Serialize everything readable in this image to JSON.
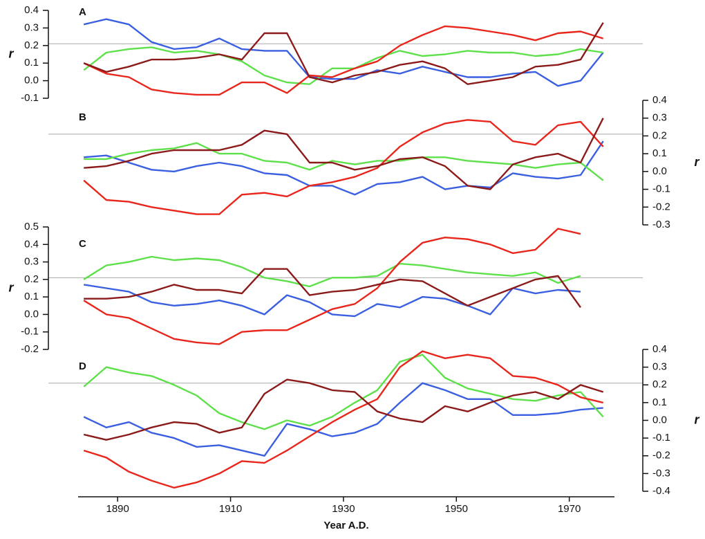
{
  "chart_data": [
    {
      "type": "line",
      "label": "A",
      "ylabel": "r",
      "y_axis_side": "left",
      "hline": 0.21,
      "hline_color": "#aaaaaa",
      "x": [
        1884,
        1888,
        1892,
        1896,
        1900,
        1904,
        1908,
        1912,
        1916,
        1920,
        1924,
        1928,
        1932,
        1936,
        1940,
        1944,
        1948,
        1952,
        1956,
        1960,
        1964,
        1968,
        1972,
        1976
      ],
      "xlim": [
        1883,
        1978
      ],
      "ylim": [
        -0.1,
        0.4
      ],
      "yticks": [
        -0.1,
        {
          "value": 0,
          "label": "0.0"
        },
        0.1,
        0.2,
        0.3,
        0.4
      ],
      "series": [
        {
          "color": "#3a5fe0",
          "values": [
            0.32,
            0.35,
            0.32,
            0.22,
            0.18,
            0.19,
            0.24,
            0.18,
            0.17,
            0.17,
            0.02,
            0.01,
            0.01,
            0.06,
            0.04,
            0.08,
            0.05,
            0.02,
            0.02,
            0.04,
            0.05,
            -0.03,
            0.0,
            0.16
          ]
        },
        {
          "color": "#5ee04a",
          "values": [
            0.06,
            0.16,
            0.18,
            0.19,
            0.16,
            0.17,
            0.15,
            0.11,
            0.03,
            -0.01,
            -0.02,
            0.07,
            0.07,
            0.13,
            0.17,
            0.14,
            0.15,
            0.17,
            0.16,
            0.16,
            0.14,
            0.15,
            0.18,
            0.16
          ]
        },
        {
          "color": "#e8261c",
          "values": [
            0.1,
            0.04,
            0.02,
            -0.05,
            -0.07,
            -0.08,
            -0.08,
            -0.01,
            -0.01,
            -0.07,
            0.03,
            0.02,
            0.07,
            0.11,
            0.2,
            0.26,
            0.31,
            0.3,
            0.28,
            0.26,
            0.23,
            0.27,
            0.28,
            0.24
          ]
        },
        {
          "color": "#8b1a1a",
          "values": [
            0.1,
            0.05,
            0.08,
            0.12,
            0.12,
            0.13,
            0.15,
            0.12,
            0.27,
            0.27,
            0.02,
            -0.01,
            0.03,
            0.05,
            0.09,
            0.11,
            0.07,
            -0.02,
            0.0,
            0.02,
            0.08,
            0.09,
            0.12,
            0.33
          ]
        }
      ]
    },
    {
      "type": "line",
      "label": "B",
      "ylabel": "r",
      "y_axis_side": "right",
      "hline": 0.21,
      "hline_color": "#aaaaaa",
      "x": [
        1884,
        1888,
        1892,
        1896,
        1900,
        1904,
        1908,
        1912,
        1916,
        1920,
        1924,
        1928,
        1932,
        1936,
        1940,
        1944,
        1948,
        1952,
        1956,
        1960,
        1964,
        1968,
        1972,
        1976
      ],
      "xlim": [
        1883,
        1978
      ],
      "ylim": [
        -0.3,
        0.4
      ],
      "yticks": [
        -0.3,
        -0.2,
        -0.1,
        {
          "value": 0,
          "label": "0.0"
        },
        0.1,
        0.2,
        0.3,
        0.4
      ],
      "series": [
        {
          "color": "#3a5fe0",
          "values": [
            0.08,
            0.09,
            0.05,
            0.01,
            0.0,
            0.03,
            0.05,
            0.03,
            -0.01,
            -0.02,
            -0.08,
            -0.08,
            -0.13,
            -0.07,
            -0.06,
            -0.03,
            -0.1,
            -0.08,
            -0.09,
            -0.01,
            -0.03,
            -0.04,
            -0.02,
            0.17
          ]
        },
        {
          "color": "#5ee04a",
          "values": [
            0.07,
            0.07,
            0.1,
            0.12,
            0.13,
            0.16,
            0.1,
            0.1,
            0.06,
            0.05,
            0.01,
            0.06,
            0.04,
            0.06,
            0.06,
            0.08,
            0.08,
            0.06,
            0.05,
            0.04,
            0.02,
            0.04,
            0.05,
            -0.05
          ]
        },
        {
          "color": "#e8261c",
          "values": [
            -0.05,
            -0.16,
            -0.17,
            -0.2,
            -0.22,
            -0.24,
            -0.24,
            -0.13,
            -0.12,
            -0.14,
            -0.08,
            -0.06,
            -0.03,
            0.02,
            0.14,
            0.22,
            0.27,
            0.29,
            0.28,
            0.17,
            0.15,
            0.26,
            0.28,
            0.14
          ]
        },
        {
          "color": "#8b1a1a",
          "values": [
            0.02,
            0.03,
            0.06,
            0.1,
            0.12,
            0.12,
            0.12,
            0.15,
            0.23,
            0.21,
            0.05,
            0.05,
            0.01,
            0.03,
            0.07,
            0.08,
            0.03,
            -0.08,
            -0.1,
            0.04,
            0.08,
            0.1,
            0.05,
            0.3
          ]
        }
      ]
    },
    {
      "type": "line",
      "label": "C",
      "ylabel": "r",
      "y_axis_side": "left",
      "hline": 0.21,
      "hline_color": "#aaaaaa",
      "x": [
        1884,
        1888,
        1892,
        1896,
        1900,
        1904,
        1908,
        1912,
        1916,
        1920,
        1924,
        1928,
        1932,
        1936,
        1940,
        1944,
        1948,
        1952,
        1956,
        1960,
        1964,
        1968,
        1972,
        1976
      ],
      "xlim": [
        1883,
        1978
      ],
      "ylim": [
        -0.2,
        0.5
      ],
      "yticks": [
        -0.2,
        -0.1,
        {
          "value": 0,
          "label": "0.0"
        },
        0.1,
        0.2,
        0.3,
        0.4,
        0.5
      ],
      "series": [
        {
          "color": "#3a5fe0",
          "values": [
            0.17,
            0.15,
            0.13,
            0.07,
            0.05,
            0.06,
            0.08,
            0.05,
            0.0,
            0.11,
            0.07,
            0.0,
            -0.01,
            0.06,
            0.04,
            0.1,
            0.09,
            0.05,
            0.0,
            0.15,
            0.12,
            0.14,
            0.13,
            null
          ]
        },
        {
          "color": "#5ee04a",
          "values": [
            0.2,
            0.28,
            0.3,
            0.33,
            0.31,
            0.32,
            0.31,
            0.27,
            0.21,
            0.19,
            0.16,
            0.21,
            0.21,
            0.22,
            0.29,
            0.28,
            0.26,
            0.24,
            0.23,
            0.22,
            0.24,
            0.18,
            0.22,
            null
          ]
        },
        {
          "color": "#e8261c",
          "values": [
            0.08,
            0.0,
            -0.02,
            -0.08,
            -0.14,
            -0.16,
            -0.17,
            -0.1,
            -0.09,
            -0.09,
            -0.03,
            0.03,
            0.06,
            0.15,
            0.3,
            0.41,
            0.44,
            0.43,
            0.4,
            0.35,
            0.37,
            0.49,
            0.46,
            null
          ]
        },
        {
          "color": "#8b1a1a",
          "values": [
            0.09,
            0.09,
            0.1,
            0.13,
            0.17,
            0.14,
            0.14,
            0.12,
            0.26,
            0.26,
            0.11,
            0.13,
            0.14,
            0.17,
            0.2,
            0.19,
            0.12,
            0.05,
            0.1,
            0.15,
            0.2,
            0.22,
            0.04,
            null
          ]
        }
      ]
    },
    {
      "type": "line",
      "label": "D",
      "ylabel": "r",
      "y_axis_side": "right",
      "hline": 0.21,
      "hline_color": "#aaaaaa",
      "x": [
        1884,
        1888,
        1892,
        1896,
        1900,
        1904,
        1908,
        1912,
        1916,
        1920,
        1924,
        1928,
        1932,
        1936,
        1940,
        1944,
        1948,
        1952,
        1956,
        1960,
        1964,
        1968,
        1972,
        1976
      ],
      "xlim": [
        1883,
        1978
      ],
      "ylim": [
        -0.4,
        0.4
      ],
      "yticks": [
        -0.4,
        -0.3,
        -0.2,
        -0.1,
        {
          "value": 0,
          "label": "0.0"
        },
        0.1,
        0.2,
        0.3,
        0.4
      ],
      "xticks": [
        1890,
        1910,
        1930,
        1950,
        1970
      ],
      "xlabel": "Year A.D.",
      "series": [
        {
          "color": "#3a5fe0",
          "values": [
            0.02,
            -0.04,
            -0.01,
            -0.07,
            -0.1,
            -0.15,
            -0.14,
            -0.17,
            -0.2,
            -0.02,
            -0.05,
            -0.09,
            -0.07,
            -0.02,
            0.1,
            0.21,
            0.17,
            0.12,
            0.12,
            0.03,
            0.03,
            0.04,
            0.06,
            0.07
          ]
        },
        {
          "color": "#5ee04a",
          "values": [
            0.19,
            0.3,
            0.27,
            0.25,
            0.2,
            0.14,
            0.04,
            -0.01,
            -0.05,
            0.0,
            -0.03,
            0.02,
            0.1,
            0.17,
            0.33,
            0.37,
            0.24,
            0.18,
            0.15,
            0.12,
            0.11,
            0.14,
            0.16,
            0.02
          ]
        },
        {
          "color": "#e8261c",
          "values": [
            -0.17,
            -0.21,
            -0.29,
            -0.34,
            -0.38,
            -0.35,
            -0.3,
            -0.23,
            -0.24,
            -0.17,
            -0.09,
            -0.01,
            0.06,
            0.12,
            0.3,
            0.39,
            0.35,
            0.37,
            0.35,
            0.25,
            0.24,
            0.2,
            0.13,
            0.1
          ]
        },
        {
          "color": "#8b1a1a",
          "values": [
            -0.08,
            -0.11,
            -0.08,
            -0.04,
            -0.01,
            -0.02,
            -0.07,
            -0.04,
            0.15,
            0.23,
            0.21,
            0.17,
            0.16,
            0.05,
            0.01,
            -0.01,
            0.08,
            0.05,
            0.1,
            0.14,
            0.16,
            0.12,
            0.2,
            0.16
          ]
        }
      ]
    }
  ]
}
